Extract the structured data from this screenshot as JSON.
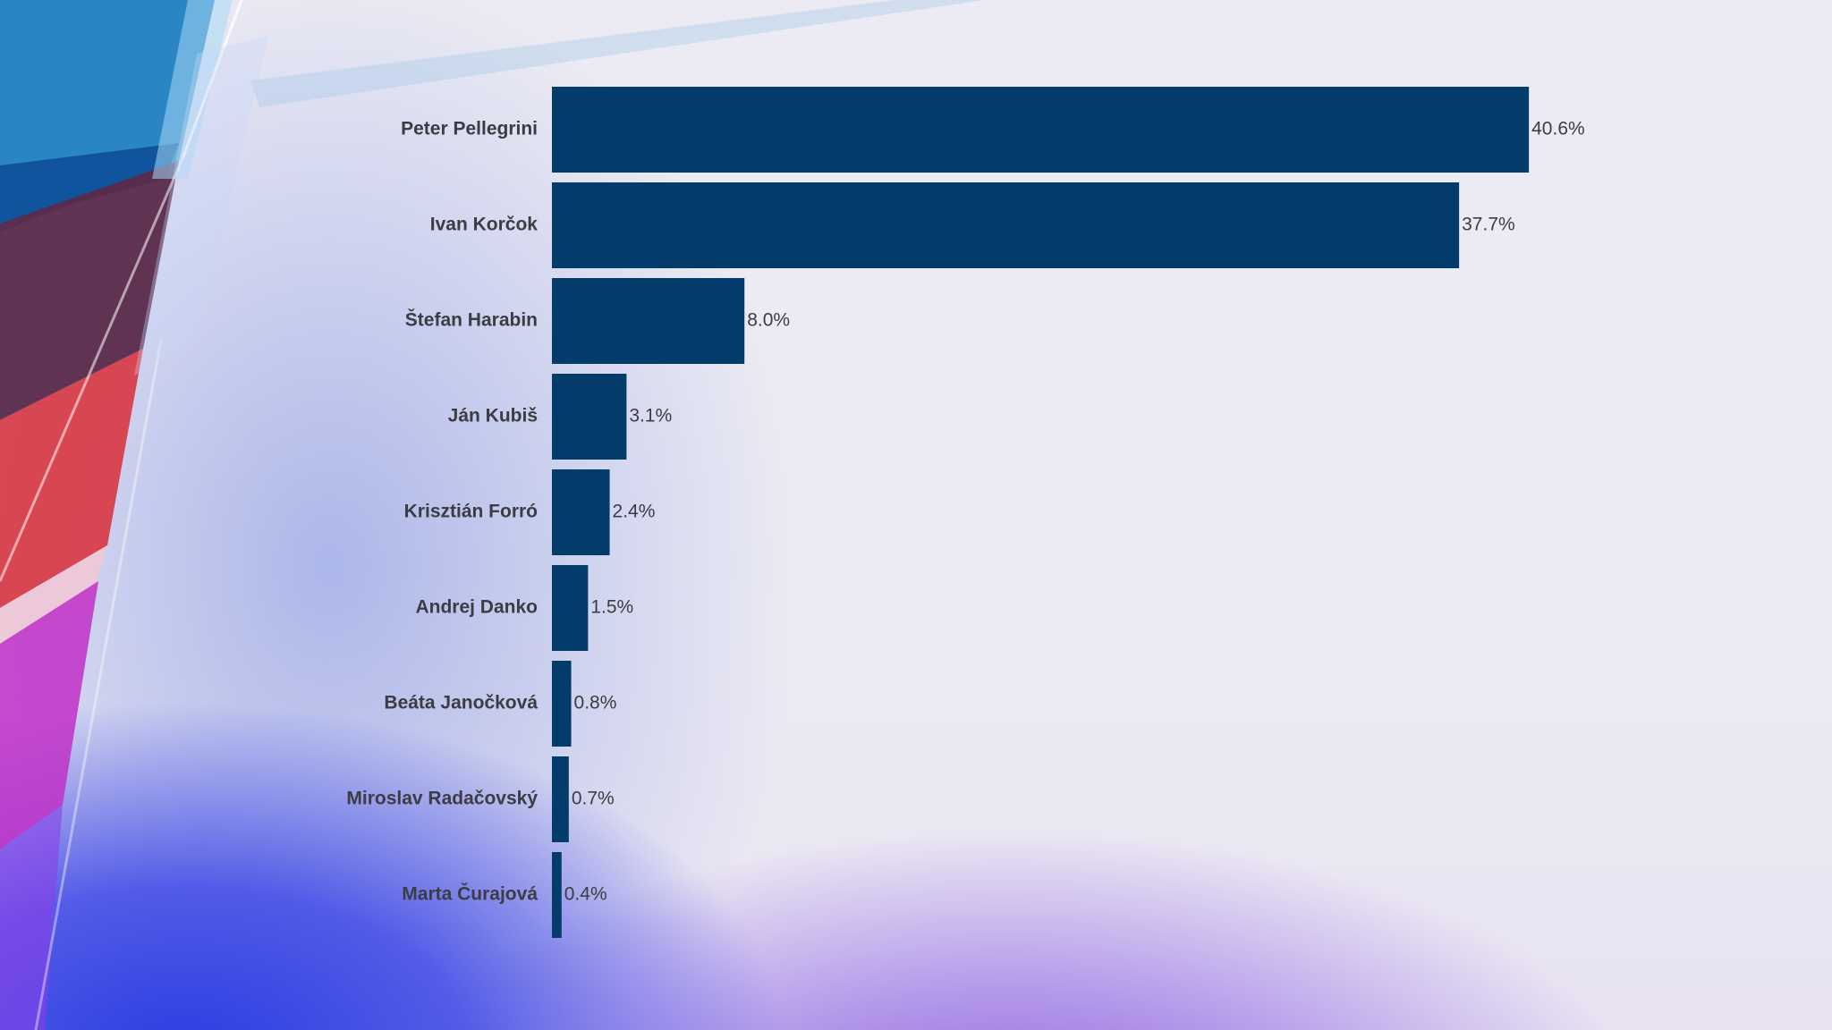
{
  "chart_data": {
    "type": "bar",
    "orientation": "horizontal",
    "categories": [
      "Peter Pellegrini",
      "Ivan Korčok",
      "Štefan Harabin",
      "Ján Kubiš",
      "Krisztián Forró",
      "Andrej Danko",
      "Beáta Janočková",
      "Miroslav Radačovský",
      "Marta Čurajová"
    ],
    "values": [
      40.6,
      37.7,
      8.0,
      3.1,
      2.4,
      1.5,
      0.8,
      0.7,
      0.4
    ],
    "value_labels": [
      "40.6%",
      "37.7%",
      "8.0%",
      "3.1%",
      "2.4%",
      "1.5%",
      "0.8%",
      "0.7%",
      "0.4%"
    ],
    "unit": "%",
    "title": "",
    "xlabel": "",
    "ylabel": "",
    "grid": false,
    "bar_color": "#033b6b",
    "label_color": "#3c3c44"
  }
}
